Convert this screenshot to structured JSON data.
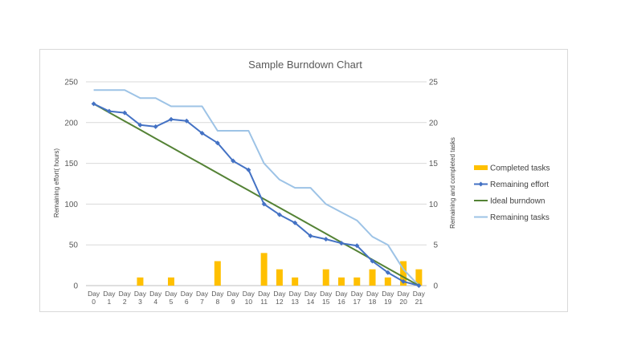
{
  "chart_data": {
    "type": "line",
    "title": "Sample Burndown Chart",
    "categories": [
      "Day 0",
      "Day 1",
      "Day 2",
      "Day 3",
      "Day 4",
      "Day 5",
      "Day 6",
      "Day 7",
      "Day 8",
      "Day 9",
      "Day 10",
      "Day 11",
      "Day 12",
      "Day 13",
      "Day 14",
      "Day 15",
      "Day 16",
      "Day 17",
      "Day 18",
      "Day 19",
      "Day 20",
      "Day 21"
    ],
    "ylabel": "Remaining effort( hours)",
    "y2label": "Remaining and completed tasks",
    "ylim": [
      0,
      250
    ],
    "y2lim": [
      0,
      25
    ],
    "yticks": [
      0,
      50,
      100,
      150,
      200,
      250
    ],
    "y2ticks": [
      0,
      5,
      10,
      15,
      20,
      25
    ],
    "grid": true,
    "legend_position": "right",
    "series": [
      {
        "name": "Completed tasks",
        "type": "bar",
        "axis": "secondary",
        "color": "#FFC000",
        "values": [
          0,
          0,
          0,
          1,
          0,
          1,
          0,
          0,
          3,
          0,
          0,
          4,
          2,
          1,
          0,
          2,
          1,
          1,
          2,
          1,
          3,
          2
        ]
      },
      {
        "name": "Remaining effort",
        "type": "line",
        "axis": "primary",
        "color": "#4472C4",
        "marker": "diamond",
        "values": [
          223,
          214,
          212,
          197,
          195,
          204,
          202,
          187,
          175,
          153,
          142,
          100,
          87,
          77,
          61,
          57,
          52,
          49,
          30,
          16,
          5,
          0
        ]
      },
      {
        "name": "Ideal burndown",
        "type": "line",
        "axis": "primary",
        "color": "#548235",
        "values": [
          223,
          212.4,
          201.8,
          191.1,
          180.5,
          169.9,
          159.3,
          148.7,
          138,
          127.4,
          116.8,
          106.2,
          95.6,
          85,
          74.3,
          63.7,
          53.1,
          42.5,
          31.9,
          21.2,
          10.6,
          0
        ]
      },
      {
        "name": "Remaining tasks",
        "type": "line",
        "axis": "secondary",
        "color": "#9DC3E6",
        "values": [
          24,
          24,
          24,
          23,
          23,
          22,
          22,
          22,
          19,
          19,
          19,
          15,
          13,
          12,
          12,
          10,
          9,
          8,
          6,
          5,
          2,
          0
        ]
      }
    ]
  }
}
